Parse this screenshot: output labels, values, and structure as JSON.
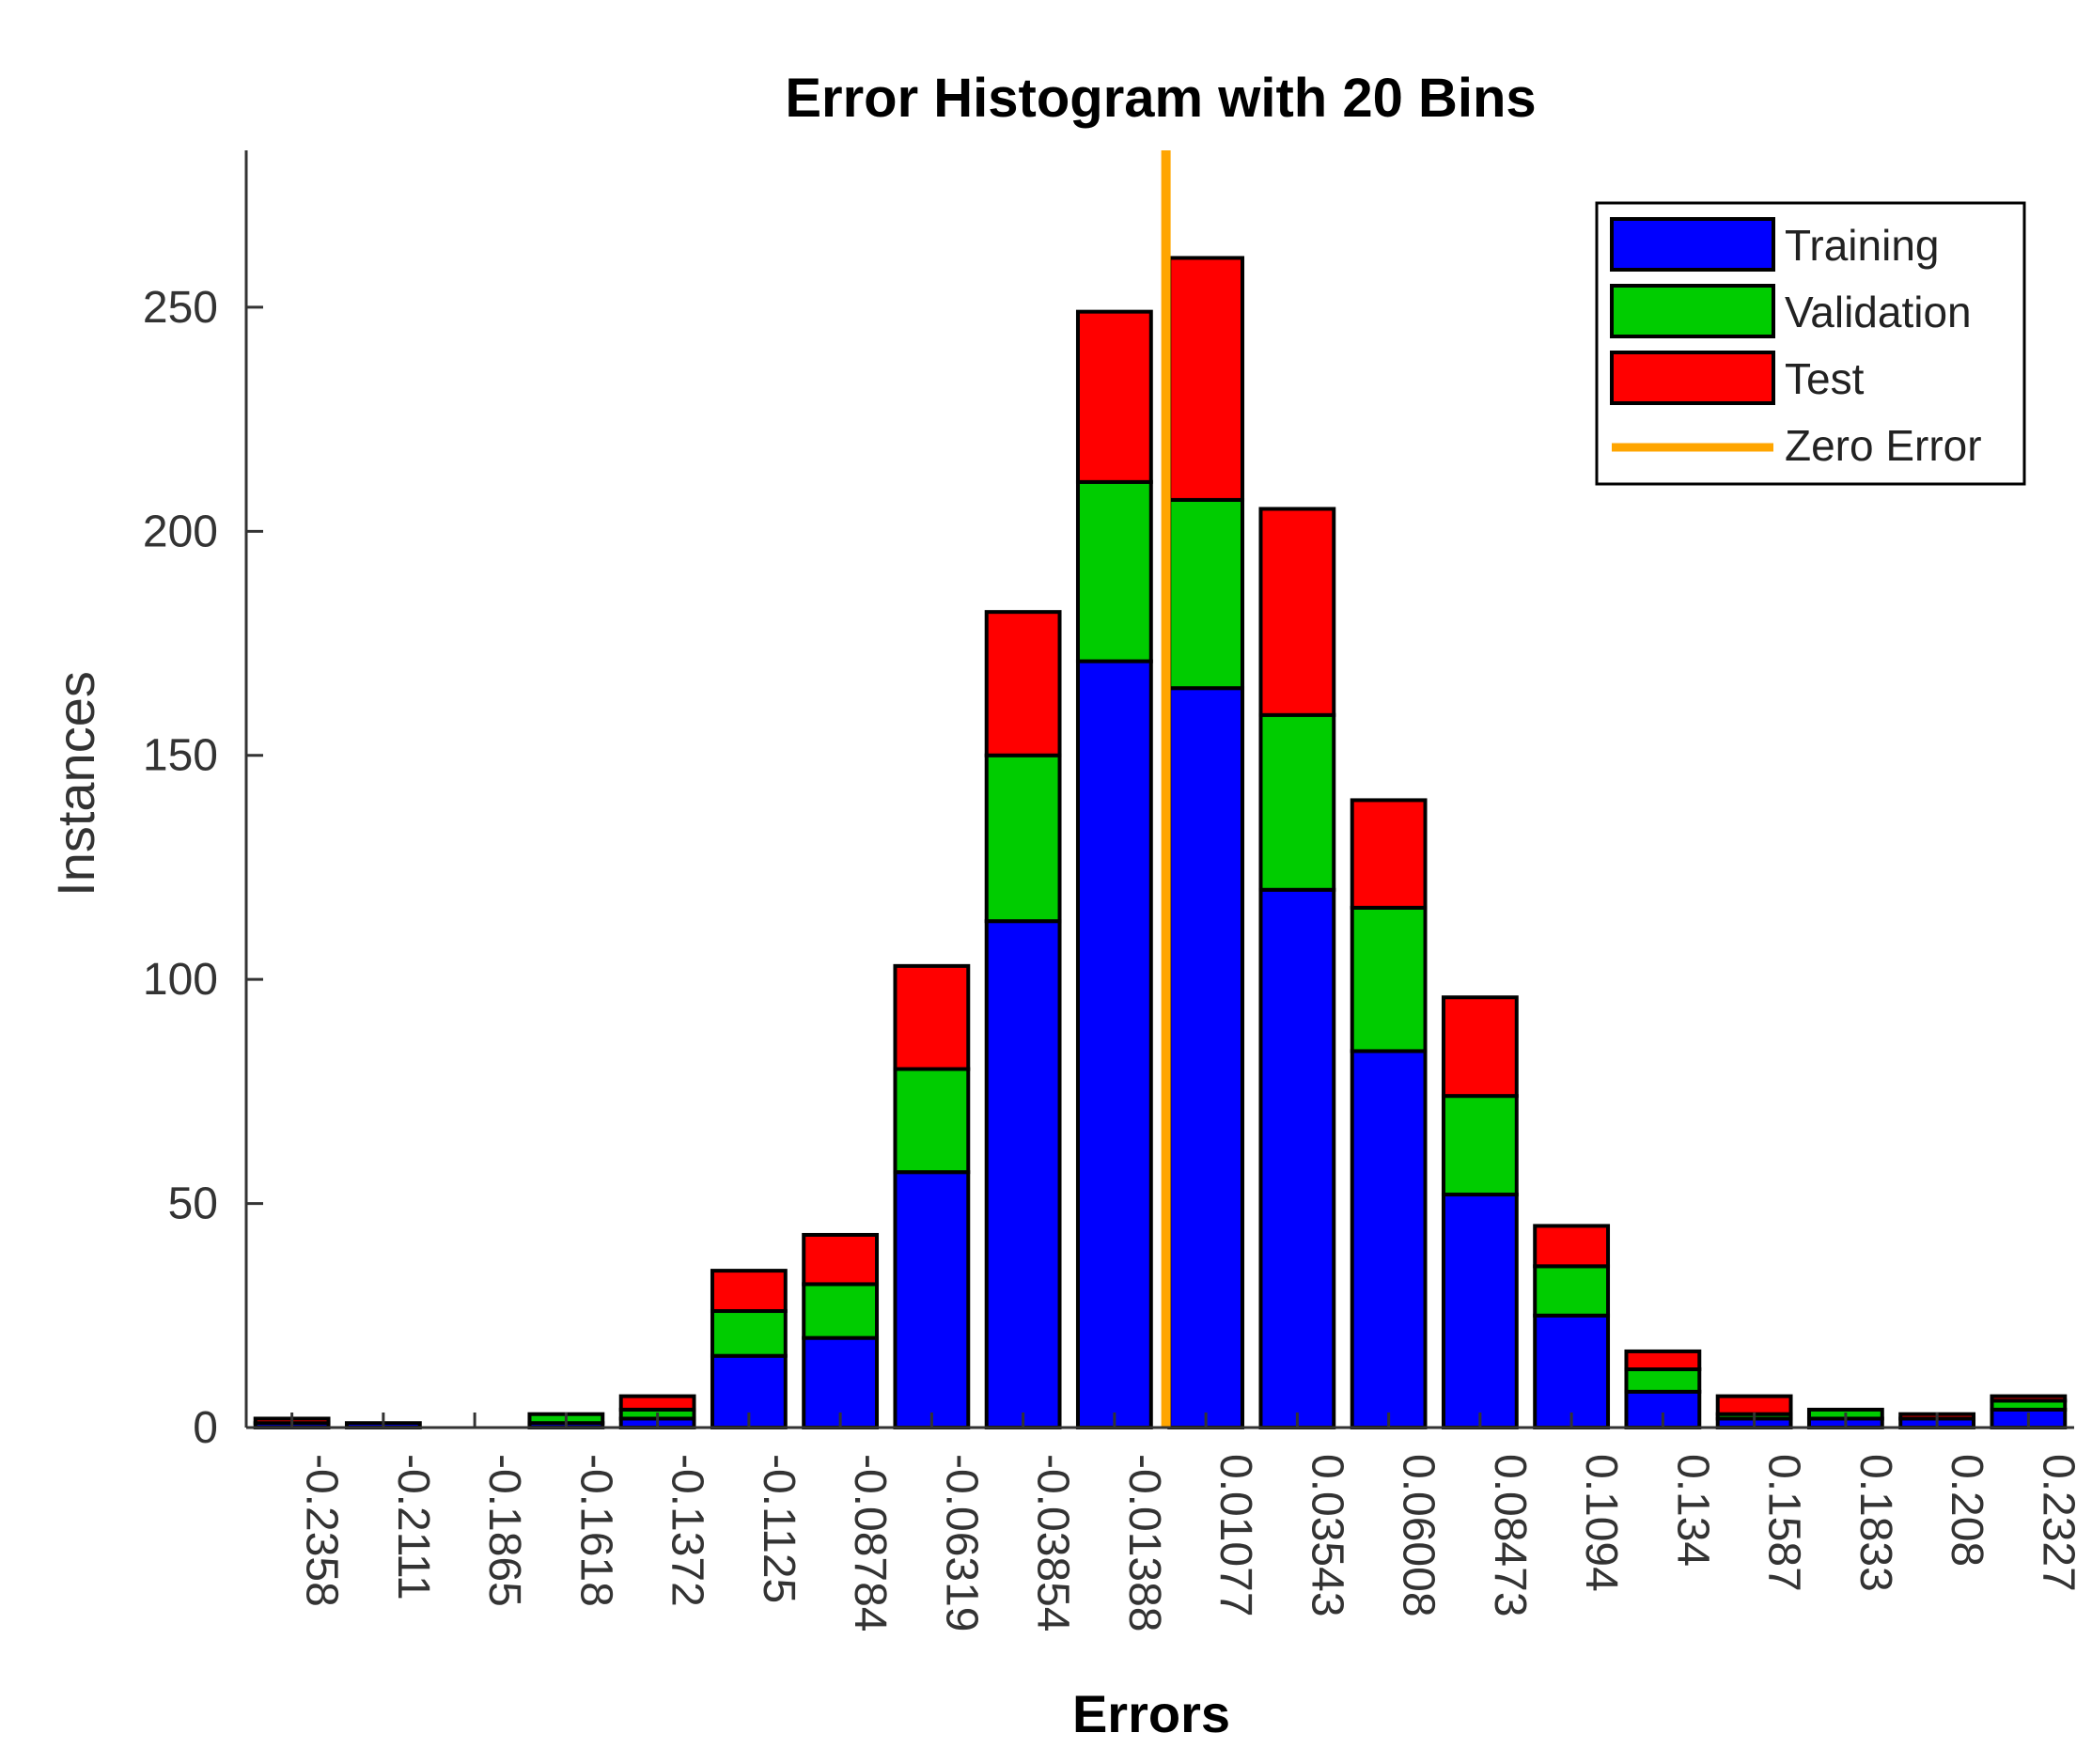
{
  "chart_data": {
    "type": "bar",
    "stacked": true,
    "title": "Error Histogram with 20 Bins",
    "xlabel": "Errors",
    "ylabel": "Instances",
    "ylim": [
      0,
      285
    ],
    "yticks": [
      "0",
      "50",
      "100",
      "150",
      "200",
      "250"
    ],
    "ytick_values": [
      0,
      50,
      100,
      150,
      200,
      250
    ],
    "categories": [
      "-0.2358",
      "-0.2111",
      "-0.1865",
      "-0.1618",
      "-0.1372",
      "-0.1125",
      "-0.08784",
      "-0.06319",
      "-0.03854",
      "-0.01388",
      "0.01077",
      "0.03543",
      "0.06008",
      "0.08473",
      "0.1094",
      "0.134",
      "0.1587",
      "0.1833",
      "0.208",
      "0.2327"
    ],
    "series": [
      {
        "name": "Training",
        "color": "#0000ff",
        "values": [
          1,
          1,
          0,
          1,
          2,
          16,
          20,
          57,
          113,
          171,
          165,
          120,
          84,
          52,
          25,
          8,
          2,
          2,
          2,
          4
        ]
      },
      {
        "name": "Validation",
        "color": "#00cc00",
        "values": [
          0,
          0,
          0,
          2,
          2,
          10,
          12,
          23,
          37,
          40,
          42,
          39,
          32,
          22,
          11,
          5,
          1,
          2,
          0,
          2
        ]
      },
      {
        "name": "Test",
        "color": "#ff0000",
        "values": [
          1,
          0,
          0,
          0,
          3,
          9,
          11,
          23,
          32,
          38,
          54,
          46,
          24,
          22,
          9,
          4,
          4,
          0,
          1,
          1
        ]
      }
    ],
    "zero_error": {
      "name": "Zero Error",
      "color": "#ffa500",
      "x": 0
    },
    "legend": {
      "position": "top-right",
      "entries": [
        "Training",
        "Validation",
        "Test",
        "Zero Error"
      ]
    },
    "grid": false
  }
}
